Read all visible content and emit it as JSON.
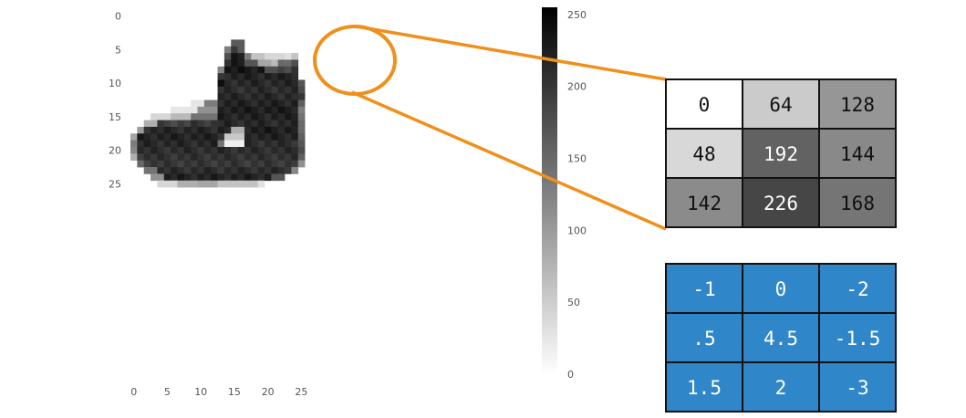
{
  "image_axes": {
    "x_ticks": [
      "0",
      "5",
      "10",
      "15",
      "20",
      "25"
    ],
    "y_ticks": [
      "0",
      "5",
      "10",
      "15",
      "20",
      "25"
    ]
  },
  "colorbar": {
    "ticks": [
      "250",
      "200",
      "150",
      "100",
      "50",
      "0"
    ],
    "min": 0,
    "max": 255,
    "colormap": "gray_r"
  },
  "zoom": {
    "highlight_color": "#f0901c"
  },
  "pixel_matrix": {
    "values": [
      [
        "0",
        "64",
        "128"
      ],
      [
        "48",
        "192",
        "144"
      ],
      [
        "142",
        "226",
        "168"
      ]
    ]
  },
  "kernel_matrix": {
    "values": [
      [
        "-1",
        "0",
        "-2"
      ],
      [
        ".5",
        "4.5",
        "-1.5"
      ],
      [
        "1.5",
        "2",
        "-3"
      ]
    ],
    "fill_color": "#2f86c9"
  },
  "chart_data": {
    "type": "heatmap",
    "rows": 28,
    "cols": 28,
    "value_range": [
      0,
      255
    ],
    "description_values": "grayscale pixel intensities of an ankle-boot image (approximate)"
  }
}
